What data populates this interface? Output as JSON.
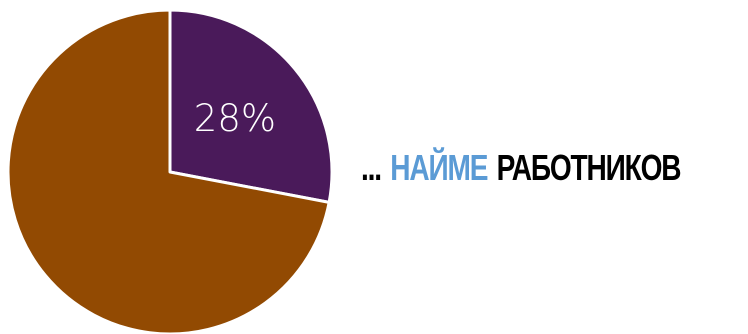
{
  "chart_data": {
    "type": "pie",
    "slices": [
      {
        "label": "28%",
        "value": 28,
        "color": "#4a1a5a"
      },
      {
        "label": "",
        "value": 72,
        "color": "#924a02"
      }
    ],
    "start_angle_deg": 0,
    "direction": "clockwise"
  },
  "caption": {
    "prefix": "...",
    "highlight": "НАЙМЕ",
    "rest": "РАБОТНИКОВ",
    "prefix_color": "#000000",
    "highlight_color": "#5b9bd5",
    "rest_color": "#000000"
  }
}
